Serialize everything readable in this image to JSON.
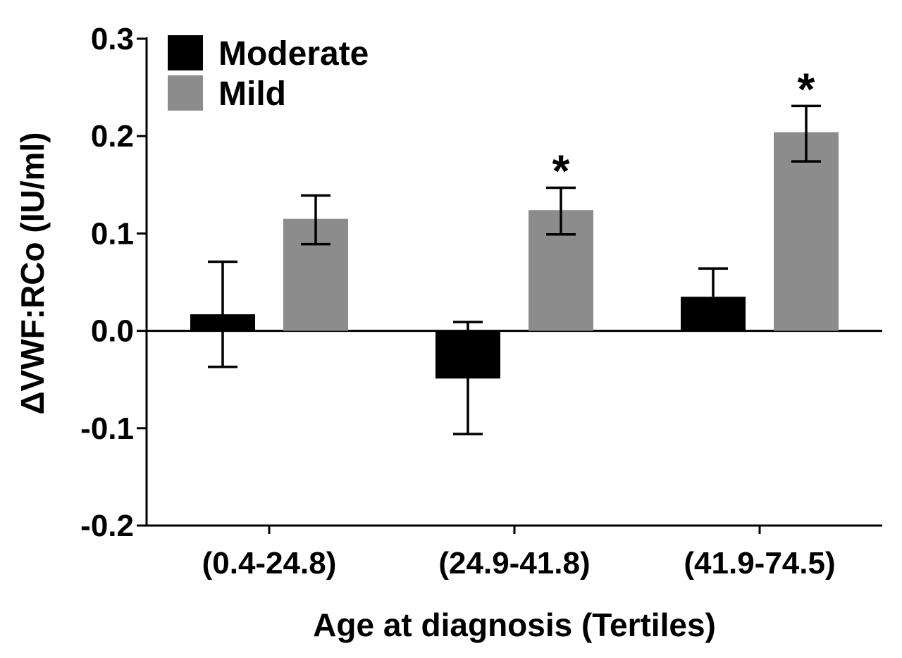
{
  "chart_data": {
    "type": "bar",
    "title": "",
    "xlabel": "Age at diagnosis (Tertiles)",
    "ylabel": "ΔVWF:RCo (IU/ml)",
    "ylim": [
      -0.2,
      0.3
    ],
    "yticks": [
      {
        "value": -0.2,
        "label": "-0.2"
      },
      {
        "value": -0.1,
        "label": "-0.1"
      },
      {
        "value": 0.0,
        "label": "0.0"
      },
      {
        "value": 0.1,
        "label": "0.1"
      },
      {
        "value": 0.2,
        "label": "0.2"
      },
      {
        "value": 0.3,
        "label": "0.3"
      }
    ],
    "categories": [
      "(0.4-24.8)",
      "(24.9-41.8)",
      "(41.9-74.5)"
    ],
    "legend_position": "top-left",
    "series": [
      {
        "name": "Moderate",
        "color": "#000000",
        "values": [
          0.017,
          -0.049,
          0.035
        ],
        "error_low": [
          -0.037,
          -0.106,
          0.035
        ],
        "error_high": [
          0.071,
          0.009,
          0.064
        ],
        "significance": [
          "",
          "",
          ""
        ]
      },
      {
        "name": "Mild",
        "color": "#8c8c8c",
        "values": [
          0.115,
          0.124,
          0.204
        ],
        "error_low": [
          0.089,
          0.099,
          0.174
        ],
        "error_high": [
          0.139,
          0.147,
          0.231
        ],
        "significance": [
          "",
          "*",
          "*"
        ]
      }
    ]
  }
}
